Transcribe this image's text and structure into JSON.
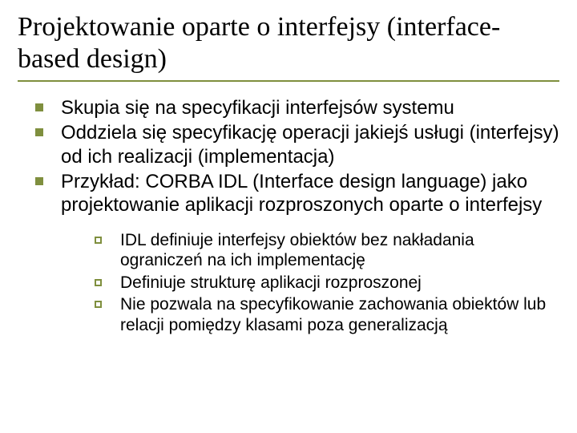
{
  "colors": {
    "bullet_fill": "#7f8f3e",
    "bullet_outline": "#7f8f3e",
    "rule": "#7f8f3e",
    "text": "#000000",
    "background": "#ffffff"
  },
  "typography": {
    "title_font_family": "Times New Roman",
    "title_fontsize_pt": 26,
    "body_font_family": "Arial",
    "level1_fontsize_pt": 18,
    "level2_fontsize_pt": 16
  },
  "title": "Projektowanie oparte o interfejsy (interface-based design)",
  "bullets": [
    {
      "text": "Skupia się na specyfikacji interfejsów systemu"
    },
    {
      "text": "Oddziela się specyfikację operacji jakiejś usługi (interfejsy) od ich realizacji (implementacja)"
    },
    {
      "text": "Przykład: CORBA IDL (Interface design language) jako projektowanie aplikacji rozproszonych oparte o interfejsy",
      "children": [
        {
          "text": "IDL definiuje interfejsy obiektów bez nakładania ograniczeń na ich implementację"
        },
        {
          "text": "Definiuje strukturę aplikacji rozproszonej"
        },
        {
          "text": "Nie pozwala na specyfikowanie zachowania obiektów lub relacji pomiędzy klasami poza generalizacją"
        }
      ]
    }
  ]
}
